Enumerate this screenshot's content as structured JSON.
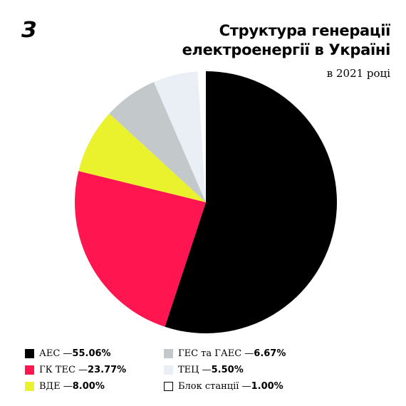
{
  "logo": "З",
  "header": {
    "title_line1": "Структура генерації",
    "title_line2": "електроенергії в Україні",
    "subtitle": "в 2021 році"
  },
  "chart_data": {
    "type": "pie",
    "title": "Структура генерації електроенергії в Україні",
    "subtitle": "в 2021 році",
    "legend_position": "bottom",
    "slices": [
      {
        "label": "АЕС",
        "value": 55.06,
        "display": "55.06%",
        "color": "#000000"
      },
      {
        "label": "ГК ТЕС",
        "value": 23.77,
        "display": "23.77%",
        "color": "#ff1550"
      },
      {
        "label": "ВДЕ",
        "value": 8.0,
        "display": "8.00%",
        "color": "#e9f22c"
      },
      {
        "label": "ГЕС та ГАЕС",
        "value": 6.67,
        "display": "6.67%",
        "color": "#c3c9cb"
      },
      {
        "label": "ТЕЦ",
        "value": 5.5,
        "display": "5.50%",
        "color": "#e9eff5"
      },
      {
        "label": "Блок станції",
        "value": 1.0,
        "display": "1.00%",
        "color": "#ffffff"
      }
    ]
  }
}
